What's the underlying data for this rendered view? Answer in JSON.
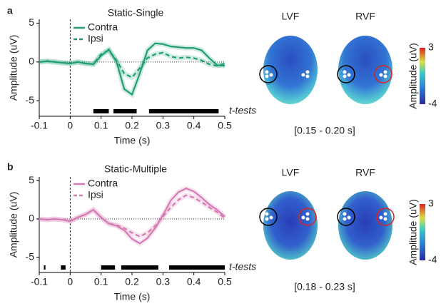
{
  "chart_data": [
    {
      "type": "line",
      "panel": "a",
      "title": "Static-Single",
      "x_label": "Time (s)",
      "y_label": "Amplitude (uV)",
      "ttest_label": "t-tests",
      "x": [
        -0.1,
        -0.075,
        -0.05,
        -0.025,
        0,
        0.025,
        0.05,
        0.075,
        0.1,
        0.125,
        0.15,
        0.175,
        0.2,
        0.225,
        0.25,
        0.275,
        0.3,
        0.325,
        0.35,
        0.375,
        0.4,
        0.425,
        0.45,
        0.475,
        0.5
      ],
      "series": [
        {
          "name": "Contra",
          "color": "#1f9e74",
          "dash": false,
          "values": [
            0,
            0.1,
            0,
            -0.1,
            -0.2,
            0,
            -0.2,
            -0.3,
            0.8,
            1.6,
            0,
            -3.5,
            -4.2,
            -1.5,
            1.5,
            2.4,
            2.3,
            2.0,
            1.9,
            1.8,
            1.8,
            1.5,
            0.5,
            -0.4,
            -0.5
          ]
        },
        {
          "name": "Ipsi",
          "color": "#1f9e74",
          "dash": true,
          "values": [
            0,
            0.1,
            0,
            -0.1,
            -0.2,
            0,
            -0.2,
            -0.3,
            1.0,
            1.5,
            0.2,
            -1.5,
            -2.0,
            -0.8,
            0.5,
            1.0,
            1.2,
            0.7,
            0.5,
            0.6,
            0.5,
            0.2,
            -0.3,
            -0.5,
            -0.2
          ]
        }
      ],
      "ttests": [
        [
          0.075,
          0.125
        ],
        [
          0.14,
          0.215
        ],
        [
          0.255,
          0.48
        ]
      ],
      "xlim": [
        -0.1,
        0.5
      ],
      "xticks": [
        -0.1,
        0,
        0.1,
        0.2,
        0.3,
        0.4,
        0.5
      ],
      "ylim": [
        -7,
        5.5
      ],
      "yticks": [
        -5,
        0,
        5
      ],
      "topo": {
        "labels": [
          "LVF",
          "RVF"
        ],
        "window": "[0.15 - 0.20 s]",
        "colorbar_label": "Amplitude (uV)",
        "clim": [
          -4,
          3
        ],
        "cticks": [
          -4,
          3
        ]
      }
    },
    {
      "type": "line",
      "panel": "b",
      "title": "Static-Multiple",
      "x_label": "Time (s)",
      "y_label": "Amplitude (uV)",
      "ttest_label": "t-tests",
      "x": [
        -0.1,
        -0.075,
        -0.05,
        -0.025,
        0,
        0.025,
        0.05,
        0.075,
        0.1,
        0.125,
        0.15,
        0.175,
        0.2,
        0.225,
        0.25,
        0.275,
        0.3,
        0.325,
        0.35,
        0.375,
        0.4,
        0.425,
        0.45,
        0.475,
        0.5
      ],
      "series": [
        {
          "name": "Contra",
          "color": "#d67bb5",
          "dash": false,
          "values": [
            0,
            -0.1,
            0,
            -0.1,
            -0.3,
            0.2,
            0.6,
            1.2,
            0.2,
            -0.6,
            -0.9,
            -1.5,
            -2.6,
            -3.2,
            -2.5,
            -1.2,
            0.5,
            2.4,
            3.5,
            4.0,
            3.6,
            2.8,
            1.9,
            1.2,
            0.3
          ]
        },
        {
          "name": "Ipsi",
          "color": "#d67bb5",
          "dash": true,
          "values": [
            0,
            -0.1,
            0,
            -0.1,
            -0.3,
            0.2,
            0.6,
            1.2,
            0.2,
            -0.6,
            -0.8,
            -1.2,
            -1.8,
            -2.3,
            -1.8,
            -0.9,
            0.3,
            1.5,
            2.5,
            3.1,
            2.8,
            2.2,
            1.5,
            0.9,
            0.1
          ]
        }
      ],
      "ttests": [
        [
          -0.085,
          -0.08
        ],
        [
          -0.03,
          -0.015
        ],
        [
          0.1,
          0.145
        ],
        [
          0.165,
          0.285
        ],
        [
          0.32,
          0.5
        ]
      ],
      "xlim": [
        -0.1,
        0.5
      ],
      "xticks": [
        -0.1,
        0,
        0.1,
        0.2,
        0.3,
        0.4,
        0.5
      ],
      "ylim": [
        -7,
        5.5
      ],
      "yticks": [
        -5,
        0,
        5
      ],
      "topo": {
        "labels": [
          "LVF",
          "RVF"
        ],
        "window": "[0.18 - 0.23 s]",
        "colorbar_label": "Amplitude (uV)",
        "clim": [
          -4,
          3
        ],
        "cticks": [
          -4,
          3
        ]
      }
    }
  ]
}
